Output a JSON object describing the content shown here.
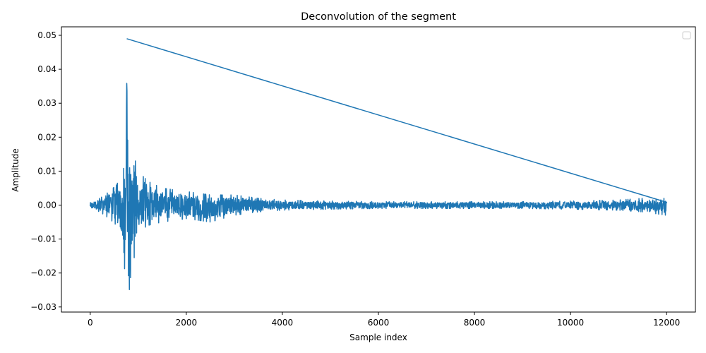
{
  "chart_data": {
    "type": "line",
    "title": "Deconvolution of the segment",
    "xlabel": "Sample index",
    "ylabel": "Amplitude",
    "xlim": [
      -600,
      12600
    ],
    "ylim": [
      -0.0315,
      0.0525
    ],
    "x_ticks": [
      0,
      2000,
      4000,
      6000,
      8000,
      10000,
      12000
    ],
    "x_tick_labels": [
      "0",
      "2000",
      "4000",
      "6000",
      "8000",
      "10000",
      "12000"
    ],
    "y_ticks": [
      -0.03,
      -0.02,
      -0.01,
      0.0,
      0.01,
      0.02,
      0.03,
      0.04,
      0.05
    ],
    "y_tick_labels": [
      "−0.03",
      "−0.02",
      "−0.01",
      "0.00",
      "0.01",
      "0.02",
      "0.03",
      "0.04",
      "0.05"
    ],
    "grid": false,
    "legend": {
      "placement": "upper-right",
      "entries": []
    },
    "series": [
      {
        "color": "#1f77b4",
        "x_start": 0,
        "x_end": 12000,
        "envelope": {
          "x": [
            0,
            200,
            400,
            550,
            650,
            700,
            740,
            760,
            800,
            850,
            900,
            950,
            1000,
            1200,
            1500,
            2000,
            2500,
            3000,
            3500,
            4000,
            5000,
            6000,
            7000,
            8000,
            9000,
            10000,
            11000,
            11500,
            12000
          ],
          "max": [
            0.001,
            0.002,
            0.004,
            0.006,
            0.009,
            0.011,
            0.018,
            0.049,
            0.016,
            0.015,
            0.017,
            0.012,
            0.01,
            0.007,
            0.005,
            0.004,
            0.003,
            0.003,
            0.002,
            0.0015,
            0.0012,
            0.001,
            0.001,
            0.001,
            0.001,
            0.0012,
            0.0015,
            0.002,
            0.002
          ],
          "min": [
            -0.001,
            -0.002,
            -0.004,
            -0.006,
            -0.012,
            -0.018,
            -0.02,
            -0.018,
            -0.027,
            -0.02,
            -0.017,
            -0.012,
            -0.008,
            -0.006,
            -0.005,
            -0.004,
            -0.005,
            -0.003,
            -0.002,
            -0.0015,
            -0.0012,
            -0.001,
            -0.001,
            -0.001,
            -0.001,
            -0.0012,
            -0.0015,
            -0.002,
            -0.003
          ]
        }
      }
    ]
  }
}
